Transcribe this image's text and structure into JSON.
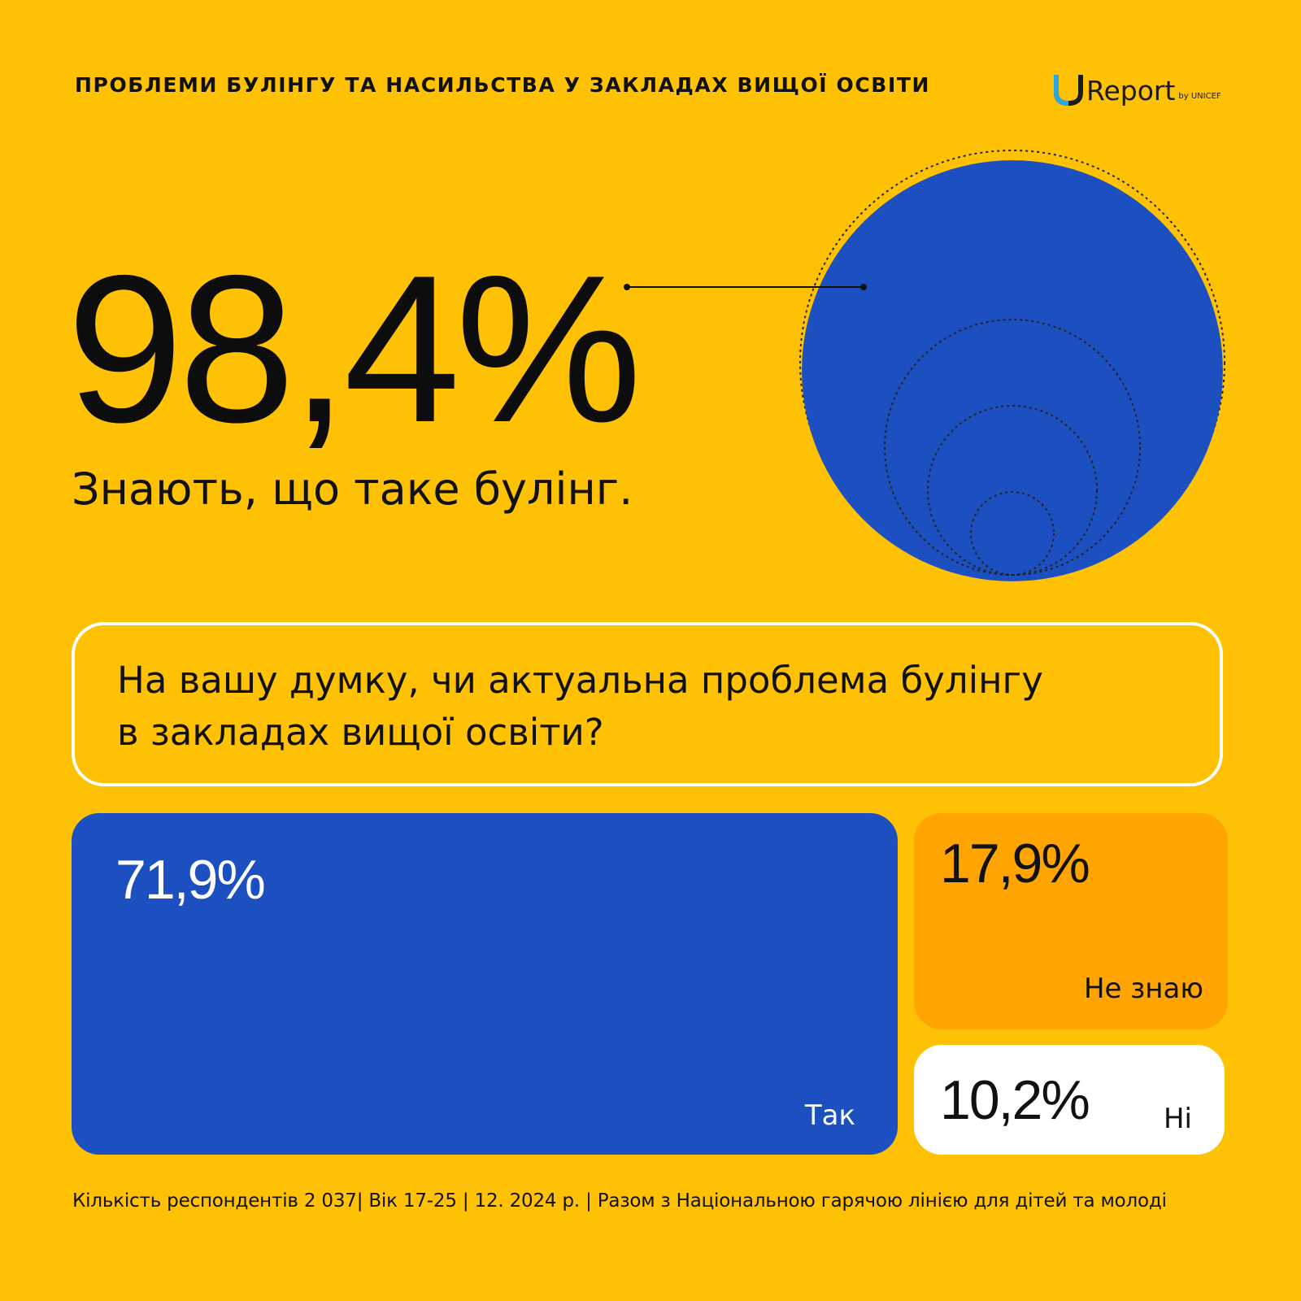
{
  "header": {
    "title": "ПРОБЛЕМИ БУЛІНГУ ТА НАСИЛЬСТВА У ЗАКЛАДАХ ВИЩОЇ ОСВІТИ",
    "logo": {
      "text": "Report",
      "subtext": "by UNICEF"
    }
  },
  "highlight": {
    "value_label": "98,4%",
    "value": 98.4,
    "caption": "Знають, що таке булінг."
  },
  "question": {
    "text_line1": "На вашу думку, чи актуальна проблема булінгу",
    "text_line2": "в закладах вищої освіти?"
  },
  "chart_data": {
    "type": "bar",
    "categories": [
      "Так",
      "Не знаю",
      "Ні"
    ],
    "values": [
      71.9,
      17.9,
      10.2
    ],
    "value_labels": [
      "71,9%",
      "17,9%",
      "10,2%"
    ],
    "unit": "%"
  },
  "footer": {
    "text": "Кількість респондентів 2 037| Вік 17-25 | 12. 2024 р. | Разом з Національною гарячою лінією для дітей та молоді"
  },
  "colors": {
    "background": "#FFC103",
    "blue": "#1C50C0",
    "orange": "#FFA400",
    "white": "#FFFFFF",
    "text": "#111111"
  }
}
